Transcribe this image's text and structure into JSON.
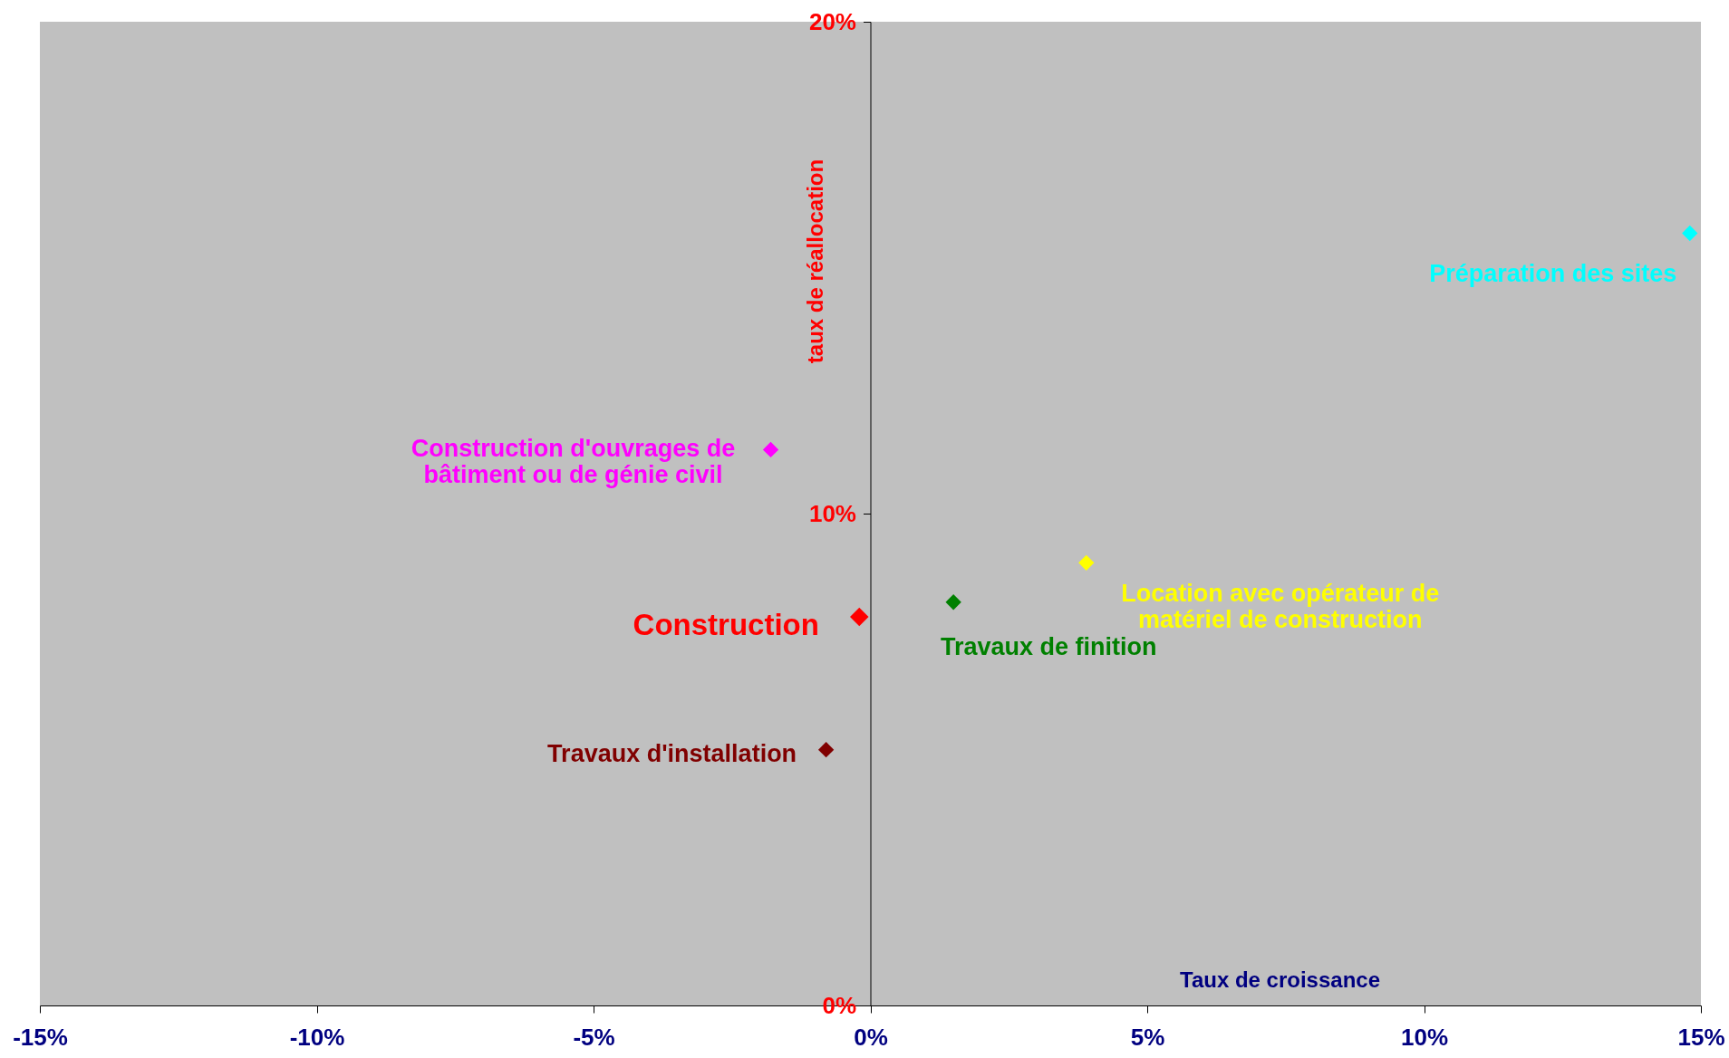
{
  "chart_data": {
    "type": "scatter",
    "xlabel": "Taux de croissance",
    "ylabel": "taux de réallocation",
    "xlim": [
      -15,
      15
    ],
    "ylim": [
      0,
      20
    ],
    "xticks": [
      {
        "value": -15,
        "label": "-15%"
      },
      {
        "value": -10,
        "label": "-10%"
      },
      {
        "value": -5,
        "label": "-5%"
      },
      {
        "value": 0,
        "label": "0%"
      },
      {
        "value": 5,
        "label": "5%"
      },
      {
        "value": 10,
        "label": "10%"
      },
      {
        "value": 15,
        "label": "15%"
      }
    ],
    "yticks": [
      {
        "value": 0,
        "label": "0%"
      },
      {
        "value": 10,
        "label": "10%"
      },
      {
        "value": 20,
        "label": "20%"
      }
    ],
    "grid": false,
    "marker": "diamond",
    "series": [
      {
        "name": "Préparation des sites",
        "color": "#00ffff",
        "x": [
          14.8
        ],
        "values": [
          15.7
        ]
      },
      {
        "name": "Construction d'ouvrages de\nbâtiment ou de génie civil",
        "color": "#ff00ff",
        "x": [
          -1.8
        ],
        "values": [
          11.3
        ]
      },
      {
        "name": "Location avec opérateur de\nmatériel de construction",
        "color": "#ffff00",
        "x": [
          3.9
        ],
        "values": [
          9.0
        ]
      },
      {
        "name": "Travaux de finition",
        "color": "#008000",
        "x": [
          1.5
        ],
        "values": [
          8.2
        ]
      },
      {
        "name": "Construction",
        "color": "#ff0000",
        "x": [
          -0.2
        ],
        "values": [
          7.9
        ]
      },
      {
        "name": "Travaux d'installation",
        "color": "#800000",
        "x": [
          -0.8
        ],
        "values": [
          5.2
        ]
      }
    ]
  }
}
